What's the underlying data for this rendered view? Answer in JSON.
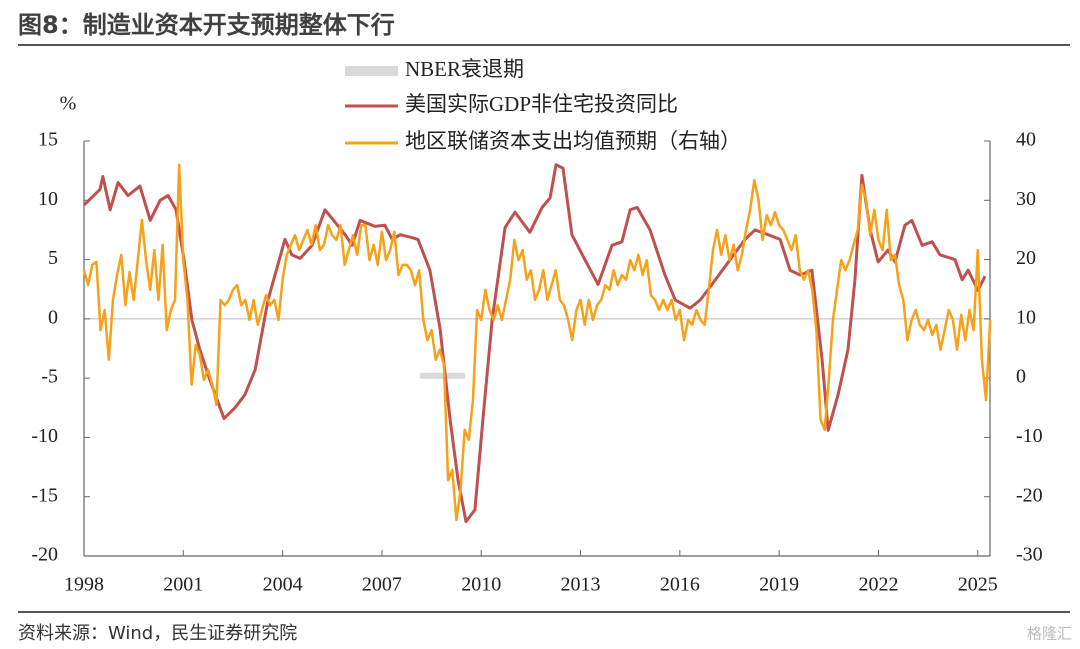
{
  "chart_data": {
    "type": "line",
    "title": "图8：制造业资本开支预期整体下行",
    "y_label": "%",
    "xlim": [
      1998,
      2025.37
    ],
    "xticks": [
      1998,
      2001,
      2004,
      2007,
      2010,
      2013,
      2016,
      2019,
      2022,
      2025
    ],
    "ylim": [
      -20,
      15
    ],
    "yticks": [
      -20,
      -15,
      -10,
      -5,
      0,
      5,
      10,
      15
    ],
    "y2lim": [
      -30,
      40
    ],
    "y2ticks": [
      -30,
      -20,
      -10,
      0,
      10,
      20,
      30,
      40
    ],
    "zero_line": true,
    "series": [
      {
        "name": "NBER衰退期",
        "color": "#d9d9d9",
        "x": [
          2008.15,
          2009.51
        ],
        "values": [
          -4.8,
          -4.8
        ]
      },
      {
        "name": "美国实际GDP非住宅投资同比",
        "color": "#c0504d",
        "x": [
          1998.0,
          1998.48,
          1998.57,
          1998.79,
          1999.03,
          1999.33,
          1999.69,
          2000.0,
          2000.3,
          2000.54,
          2000.78,
          2001.02,
          2001.26,
          2001.5,
          2001.81,
          2002.23,
          2002.56,
          2002.86,
          2003.17,
          2003.56,
          2004.07,
          2004.28,
          2004.53,
          2004.89,
          2005.28,
          2005.89,
          2006.1,
          2006.34,
          2006.79,
          2007.09,
          2007.31,
          2007.55,
          2007.85,
          2008.09,
          2008.45,
          2008.76,
          2009.06,
          2009.3,
          2009.54,
          2009.81,
          2010.05,
          2010.33,
          2010.72,
          2011.02,
          2011.47,
          2011.84,
          2012.08,
          2012.26,
          2012.47,
          2012.74,
          2013.13,
          2013.53,
          2013.95,
          2014.25,
          2014.5,
          2014.71,
          2015.1,
          2015.55,
          2015.86,
          2016.31,
          2016.62,
          2016.97,
          2017.52,
          2017.97,
          2018.27,
          2018.57,
          2019.03,
          2019.33,
          2019.63,
          2019.99,
          2020.3,
          2020.48,
          2020.78,
          2021.08,
          2021.29,
          2021.5,
          2021.75,
          2021.99,
          2022.29,
          2022.5,
          2022.8,
          2023.01,
          2023.32,
          2023.62,
          2023.86,
          2024.31,
          2024.53,
          2024.71,
          2025.01,
          2025.22
        ],
        "values": [
          9.6,
          10.9,
          12.0,
          9.2,
          11.5,
          10.4,
          11.2,
          8.3,
          10.0,
          10.4,
          9.2,
          5.0,
          -0.1,
          -2.6,
          -5.2,
          -8.4,
          -7.5,
          -6.4,
          -4.3,
          1.6,
          6.7,
          5.4,
          5.1,
          6.2,
          9.2,
          7.1,
          6.2,
          8.3,
          7.8,
          7.9,
          6.7,
          7.1,
          6.9,
          6.7,
          4.1,
          -0.9,
          -8.5,
          -13.6,
          -17.1,
          -16.1,
          -8.5,
          -0.1,
          7.7,
          9.0,
          7.3,
          9.4,
          10.2,
          13.0,
          12.7,
          7.1,
          5.0,
          2.9,
          6.2,
          6.5,
          9.2,
          9.4,
          7.5,
          3.7,
          1.6,
          0.9,
          1.6,
          2.9,
          5.0,
          6.7,
          7.5,
          7.2,
          6.7,
          4.1,
          3.7,
          4.1,
          -3.5,
          -9.4,
          -6.4,
          -2.6,
          3.3,
          12.1,
          7.5,
          4.8,
          5.8,
          4.8,
          7.9,
          8.3,
          6.2,
          6.5,
          5.4,
          5.0,
          3.3,
          4.1,
          2.4,
          3.6
        ]
      },
      {
        "name": "地区联储资本支出均值预期（右轴）",
        "color": "#f7a11a",
        "axis": "y2",
        "x": [
          1998,
          1998.125,
          1998.25,
          1998.375,
          1998.5,
          1998.625,
          1998.75,
          1998.875,
          1999,
          1999.125,
          1999.25,
          1999.375,
          1999.5,
          1999.625,
          1999.75,
          1999.875,
          2000,
          2000.125,
          2000.25,
          2000.375,
          2000.5,
          2000.625,
          2000.75,
          2000.875,
          2001,
          2001.125,
          2001.25,
          2001.375,
          2001.5,
          2001.625,
          2001.75,
          2001.875,
          2002,
          2002.125,
          2002.25,
          2002.375,
          2002.5,
          2002.625,
          2002.75,
          2002.875,
          2003,
          2003.125,
          2003.25,
          2003.375,
          2003.5,
          2003.625,
          2003.75,
          2003.875,
          2004,
          2004.125,
          2004.25,
          2004.375,
          2004.5,
          2004.625,
          2004.75,
          2004.875,
          2005,
          2005.125,
          2005.25,
          2005.375,
          2005.5,
          2005.625,
          2005.75,
          2005.875,
          2006,
          2006.125,
          2006.25,
          2006.375,
          2006.5,
          2006.625,
          2006.75,
          2006.875,
          2007,
          2007.125,
          2007.25,
          2007.375,
          2007.5,
          2007.625,
          2007.75,
          2007.875,
          2008,
          2008.125,
          2008.25,
          2008.375,
          2008.5,
          2008.625,
          2008.75,
          2008.875,
          2009,
          2009.125,
          2009.25,
          2009.375,
          2009.5,
          2009.625,
          2009.75,
          2009.875,
          2010,
          2010.125,
          2010.25,
          2010.375,
          2010.5,
          2010.625,
          2010.75,
          2010.875,
          2011,
          2011.125,
          2011.25,
          2011.375,
          2011.5,
          2011.625,
          2011.75,
          2011.875,
          2012,
          2012.125,
          2012.25,
          2012.375,
          2012.5,
          2012.625,
          2012.75,
          2012.875,
          2013,
          2013.125,
          2013.25,
          2013.375,
          2013.5,
          2013.625,
          2013.75,
          2013.875,
          2014,
          2014.125,
          2014.25,
          2014.375,
          2014.5,
          2014.625,
          2014.75,
          2014.875,
          2015,
          2015.125,
          2015.25,
          2015.375,
          2015.5,
          2015.625,
          2015.75,
          2015.875,
          2016,
          2016.125,
          2016.25,
          2016.375,
          2016.5,
          2016.625,
          2016.75,
          2016.875,
          2017,
          2017.125,
          2017.25,
          2017.375,
          2017.5,
          2017.625,
          2017.75,
          2017.875,
          2018,
          2018.125,
          2018.25,
          2018.375,
          2018.5,
          2018.625,
          2018.75,
          2018.875,
          2019,
          2019.125,
          2019.25,
          2019.375,
          2019.5,
          2019.625,
          2019.75,
          2019.875,
          2020,
          2020.125,
          2020.25,
          2020.375,
          2020.5,
          2020.625,
          2020.75,
          2020.875,
          2021,
          2021.125,
          2021.25,
          2021.375,
          2021.5,
          2021.625,
          2021.75,
          2021.875,
          2022,
          2022.125,
          2022.25,
          2022.375,
          2022.5,
          2022.625,
          2022.75,
          2022.875,
          2023,
          2023.125,
          2023.25,
          2023.375,
          2023.5,
          2023.625,
          2023.75,
          2023.875,
          2024,
          2024.125,
          2024.25,
          2024.375,
          2024.5,
          2024.625,
          2024.75,
          2024.875,
          2025,
          2025.125,
          2025.25,
          2025.375
        ],
        "values": [
          18.2,
          15.7,
          19.1,
          19.6,
          8.1,
          11.5,
          3.1,
          13.2,
          17.4,
          20.8,
          12.3,
          17.9,
          13.2,
          19.9,
          26.7,
          19.9,
          14.9,
          21.6,
          13.2,
          22.5,
          8.1,
          11.5,
          13.2,
          36.0,
          19.9,
          13.2,
          -1.1,
          5.6,
          3.9,
          -0.3,
          1.4,
          -1.1,
          -4.5,
          13.2,
          12.3,
          13.2,
          14.9,
          15.7,
          12.3,
          13.2,
          9.8,
          13.2,
          9.0,
          11.5,
          14.0,
          12.3,
          13.2,
          9.8,
          16.6,
          20.8,
          22.5,
          24.1,
          21.6,
          23.3,
          25.0,
          22.5,
          25.8,
          21.6,
          22.5,
          25.8,
          24.1,
          23.3,
          25.8,
          19.1,
          21.6,
          24.1,
          20.8,
          25.8,
          25.8,
          19.9,
          22.5,
          19.1,
          24.7,
          19.9,
          21.6,
          24.7,
          17.4,
          19.1,
          19.1,
          18.2,
          15.7,
          18.2,
          9.8,
          6.4,
          8.1,
          3.1,
          4.8,
          2.2,
          -17.2,
          -15.5,
          -23.9,
          -18.9,
          -8.7,
          -10.4,
          -3.7,
          11.5,
          9.8,
          14.9,
          11.5,
          9.8,
          12.3,
          9.8,
          13.2,
          16.6,
          23.3,
          19.9,
          21.6,
          16.6,
          18.2,
          13.2,
          14.9,
          18.2,
          13.2,
          15.7,
          18.2,
          13.2,
          12.3,
          9.8,
          6.4,
          11.5,
          13.2,
          9.0,
          13.2,
          9.8,
          12.3,
          13.2,
          15.7,
          14.9,
          18.2,
          15.7,
          17.4,
          16.6,
          19.9,
          18.2,
          20.8,
          17.4,
          19.9,
          14.0,
          13.2,
          11.5,
          13.2,
          11.5,
          13.2,
          9.8,
          11.5,
          6.4,
          9.8,
          9.0,
          11.5,
          9.8,
          9.0,
          14.9,
          21.6,
          25.0,
          20.8,
          24.1,
          19.9,
          22.5,
          18.2,
          20.8,
          25.0,
          28.4,
          33.4,
          30.1,
          23.3,
          27.5,
          25.8,
          28.0,
          25.8,
          25.0,
          23.3,
          21.6,
          24.1,
          18.2,
          16.6,
          18.2,
          14.9,
          8.1,
          -7.0,
          -8.7,
          -0.3,
          9.8,
          14.9,
          19.9,
          18.2,
          19.9,
          22.5,
          25.0,
          32.6,
          30.1,
          24.1,
          28.4,
          23.3,
          21.6,
          28.4,
          19.9,
          20.8,
          15.7,
          13.2,
          6.4,
          9.8,
          11.5,
          9.0,
          8.1,
          9.8,
          7.3,
          9.0,
          4.8,
          8.1,
          11.5,
          9.8,
          4.8,
          10.7,
          6.4,
          11.5,
          8.1,
          21.6,
          3.1,
          -3.7,
          9.8
        ]
      }
    ]
  },
  "source": "资料来源：Wind，民生证券研究院",
  "watermark": "格隆汇"
}
